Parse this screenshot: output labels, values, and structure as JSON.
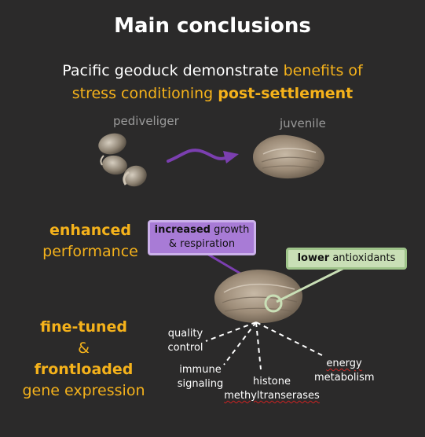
{
  "title": "Main conclusions",
  "subtitle": {
    "line1_white": "Pacific geoduck demonstrate ",
    "line1_gold": "benefits of",
    "line2_gold": "stress conditioning ",
    "line2_gold_bold": "post-settlement"
  },
  "stages": {
    "left": "pediveliger",
    "right": "juvenile"
  },
  "side_labels": {
    "enhanced": "enhanced",
    "performance": "performance",
    "fine_tuned": "fine-tuned",
    "amp": "&",
    "frontloaded": "frontloaded",
    "gene_expression": "gene expression"
  },
  "boxes": {
    "purple_bold": "increased",
    "purple_rest": " growth",
    "purple_line2": "& respiration",
    "green_bold": "lower",
    "green_rest": " antioxidants"
  },
  "gene_labels": {
    "quality_1": "quality",
    "quality_2": "control",
    "immune_1": "immune",
    "immune_2": "signaling",
    "histone_1": "histone",
    "histone_2": "methyltranserases",
    "energy_1": "energy",
    "energy_2": "metabolism"
  },
  "colors": {
    "background": "#2b2a2a",
    "gold": "#f5b21b",
    "purple": "#7b3fb0",
    "green": "#c9dfb6"
  },
  "icons": [
    "pediveliger-larvae-image",
    "juvenile-clam-image",
    "developmental-arrow-icon",
    "clam-image"
  ]
}
